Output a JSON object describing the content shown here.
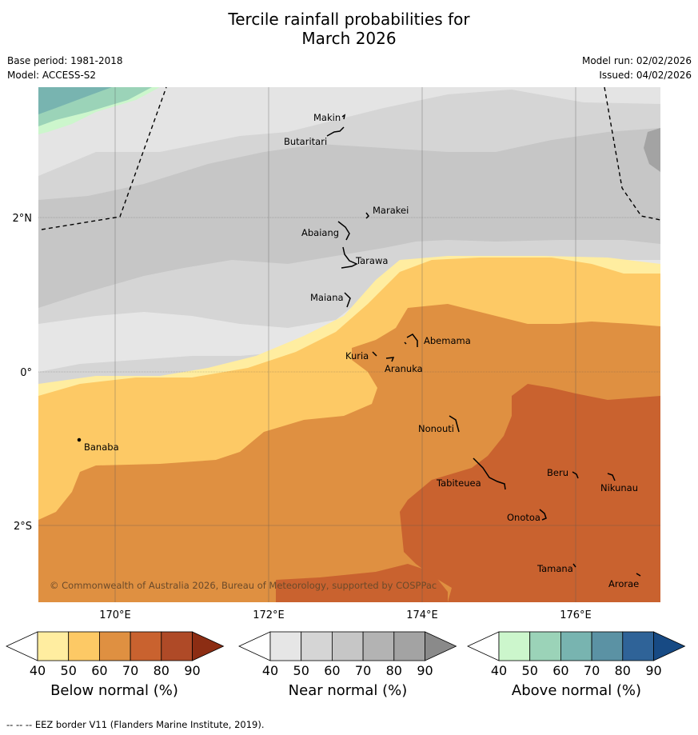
{
  "header": {
    "title_line1": "Tercile rainfall probabilities for",
    "title_line2": "March 2026",
    "base_period": "Base period: 1981-2018",
    "model": "Model: ACCESS-S2",
    "model_run": "Model run: 02/02/2026",
    "issued": "Issued: 04/02/2026"
  },
  "map": {
    "lat_labels": [
      "2°N",
      "0°",
      "2°S"
    ],
    "lon_labels": [
      "170°E",
      "172°E",
      "174°E",
      "176°E"
    ],
    "credit": "© Commonwealth of Australia 2026, Bureau of Meteorology, supported by COSPPac",
    "places": [
      "Makin",
      "Butaritari",
      "Marakei",
      "Abaiang",
      "Tarawa",
      "Maiana",
      "Abemama",
      "Kuria",
      "Aranuka",
      "Banaba",
      "Nonouti",
      "Beru",
      "Tabiteuea",
      "Nikunau",
      "Onotoa",
      "Tamana",
      "Arorae"
    ]
  },
  "colorbars": [
    {
      "title": "Below normal (%)",
      "ticks": [
        "40",
        "50",
        "60",
        "70",
        "80",
        "90"
      ],
      "colors": [
        "#ffffff",
        "#ffeda0",
        "#fdc965",
        "#df9041",
        "#c9622f",
        "#af4a27",
        "#8c2d13"
      ]
    },
    {
      "title": "Near normal (%)",
      "ticks": [
        "40",
        "50",
        "60",
        "70",
        "80",
        "90"
      ],
      "colors": [
        "#ffffff",
        "#e6e6e6",
        "#d5d5d5",
        "#c6c6c6",
        "#b3b3b3",
        "#a3a3a3",
        "#8a8a8a"
      ]
    },
    {
      "title": "Above normal (%)",
      "ticks": [
        "40",
        "50",
        "60",
        "70",
        "80",
        "90"
      ],
      "colors": [
        "#ffffff",
        "#ccf6cc",
        "#9bd3b8",
        "#78b4b0",
        "#5b92a4",
        "#2f6398",
        "#174a84"
      ]
    }
  ],
  "footnote": "--  --  -- EEZ border V11 (Flanders Marine Institute, 2019)."
}
